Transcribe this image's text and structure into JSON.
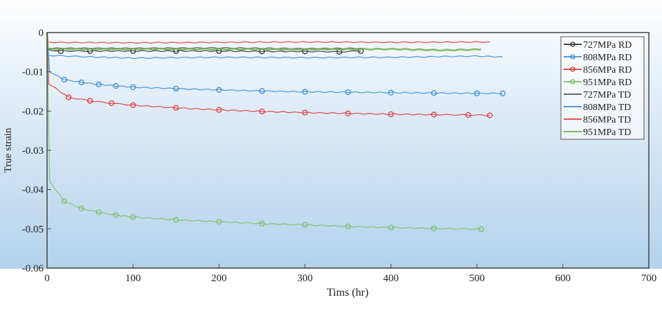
{
  "chart_data": {
    "type": "line",
    "title": "",
    "xlabel": "Tims (hr)",
    "ylabel": "True strain",
    "xlim": [
      0,
      700
    ],
    "ylim": [
      -0.06,
      0
    ],
    "xticks": [
      "0",
      "100",
      "200",
      "300",
      "400",
      "500",
      "600",
      "700"
    ],
    "yticks": [
      "0",
      "-0.01",
      "-0.02",
      "-0.03",
      "-0.04",
      "-0.05",
      "-0.06"
    ],
    "grid": false,
    "legend_position": "top-right",
    "series": [
      {
        "name": "727MPa RD",
        "color": "#333333",
        "marker": "circle",
        "x": [
          0,
          1,
          16,
          50,
          100,
          150,
          200,
          250,
          300,
          340,
          365
        ],
        "y": [
          0,
          -0.0045,
          -0.0047,
          -0.0047,
          -0.0047,
          -0.0047,
          -0.0047,
          -0.0048,
          -0.0048,
          -0.0049,
          -0.0047
        ]
      },
      {
        "name": "808MPa RD",
        "color": "#3a8fd6",
        "marker": "circle",
        "x": [
          0,
          3,
          20,
          40,
          60,
          80,
          100,
          150,
          200,
          250,
          300,
          350,
          400,
          450,
          500,
          530
        ],
        "y": [
          0,
          -0.01,
          -0.012,
          -0.0127,
          -0.0132,
          -0.0136,
          -0.0139,
          -0.0143,
          -0.0146,
          -0.0149,
          -0.0151,
          -0.0152,
          -0.0153,
          -0.0154,
          -0.0155,
          -0.0155
        ]
      },
      {
        "name": "856MPa RD",
        "color": "#e23a3a",
        "marker": "circle",
        "x": [
          0,
          2,
          25,
          50,
          75,
          100,
          150,
          200,
          250,
          300,
          350,
          400,
          450,
          490,
          515
        ],
        "y": [
          0,
          -0.013,
          -0.0165,
          -0.0174,
          -0.018,
          -0.0185,
          -0.0192,
          -0.0197,
          -0.0201,
          -0.0204,
          -0.0206,
          -0.0208,
          -0.0209,
          -0.021,
          -0.0211
        ]
      },
      {
        "name": "951MPa RD",
        "color": "#7cc06a",
        "marker": "circle",
        "x": [
          0,
          3,
          20,
          40,
          60,
          80,
          100,
          150,
          200,
          250,
          300,
          350,
          400,
          450,
          505
        ],
        "y": [
          0,
          -0.038,
          -0.043,
          -0.0448,
          -0.0458,
          -0.0465,
          -0.047,
          -0.0477,
          -0.0482,
          -0.0487,
          -0.049,
          -0.0494,
          -0.0497,
          -0.0499,
          -0.0501
        ]
      },
      {
        "name": "727MPa TD",
        "color": "#555555",
        "marker": "none",
        "x": [
          0,
          1,
          100,
          200,
          300,
          365
        ],
        "y": [
          0,
          -0.004,
          -0.004,
          -0.0039,
          -0.0041,
          -0.004
        ]
      },
      {
        "name": "808MPa TD",
        "color": "#3a8fd6",
        "marker": "none",
        "x": [
          0,
          1,
          50,
          100,
          200,
          300,
          400,
          500,
          530
        ],
        "y": [
          0,
          -0.0058,
          -0.0062,
          -0.0065,
          -0.0063,
          -0.0064,
          -0.0063,
          -0.006,
          -0.0062
        ]
      },
      {
        "name": "856MPa TD",
        "color": "#e23a3a",
        "marker": "none",
        "x": [
          0,
          1,
          100,
          200,
          300,
          400,
          515
        ],
        "y": [
          0,
          -0.0025,
          -0.0026,
          -0.0025,
          -0.0024,
          -0.0025,
          -0.0024
        ]
      },
      {
        "name": "951MPa TD",
        "color": "#6ab04c",
        "marker": "none",
        "x": [
          0,
          1,
          100,
          200,
          300,
          400,
          460,
          505
        ],
        "y": [
          0,
          -0.0042,
          -0.0042,
          -0.0042,
          -0.0043,
          -0.0042,
          -0.0045,
          -0.0043
        ]
      }
    ]
  }
}
